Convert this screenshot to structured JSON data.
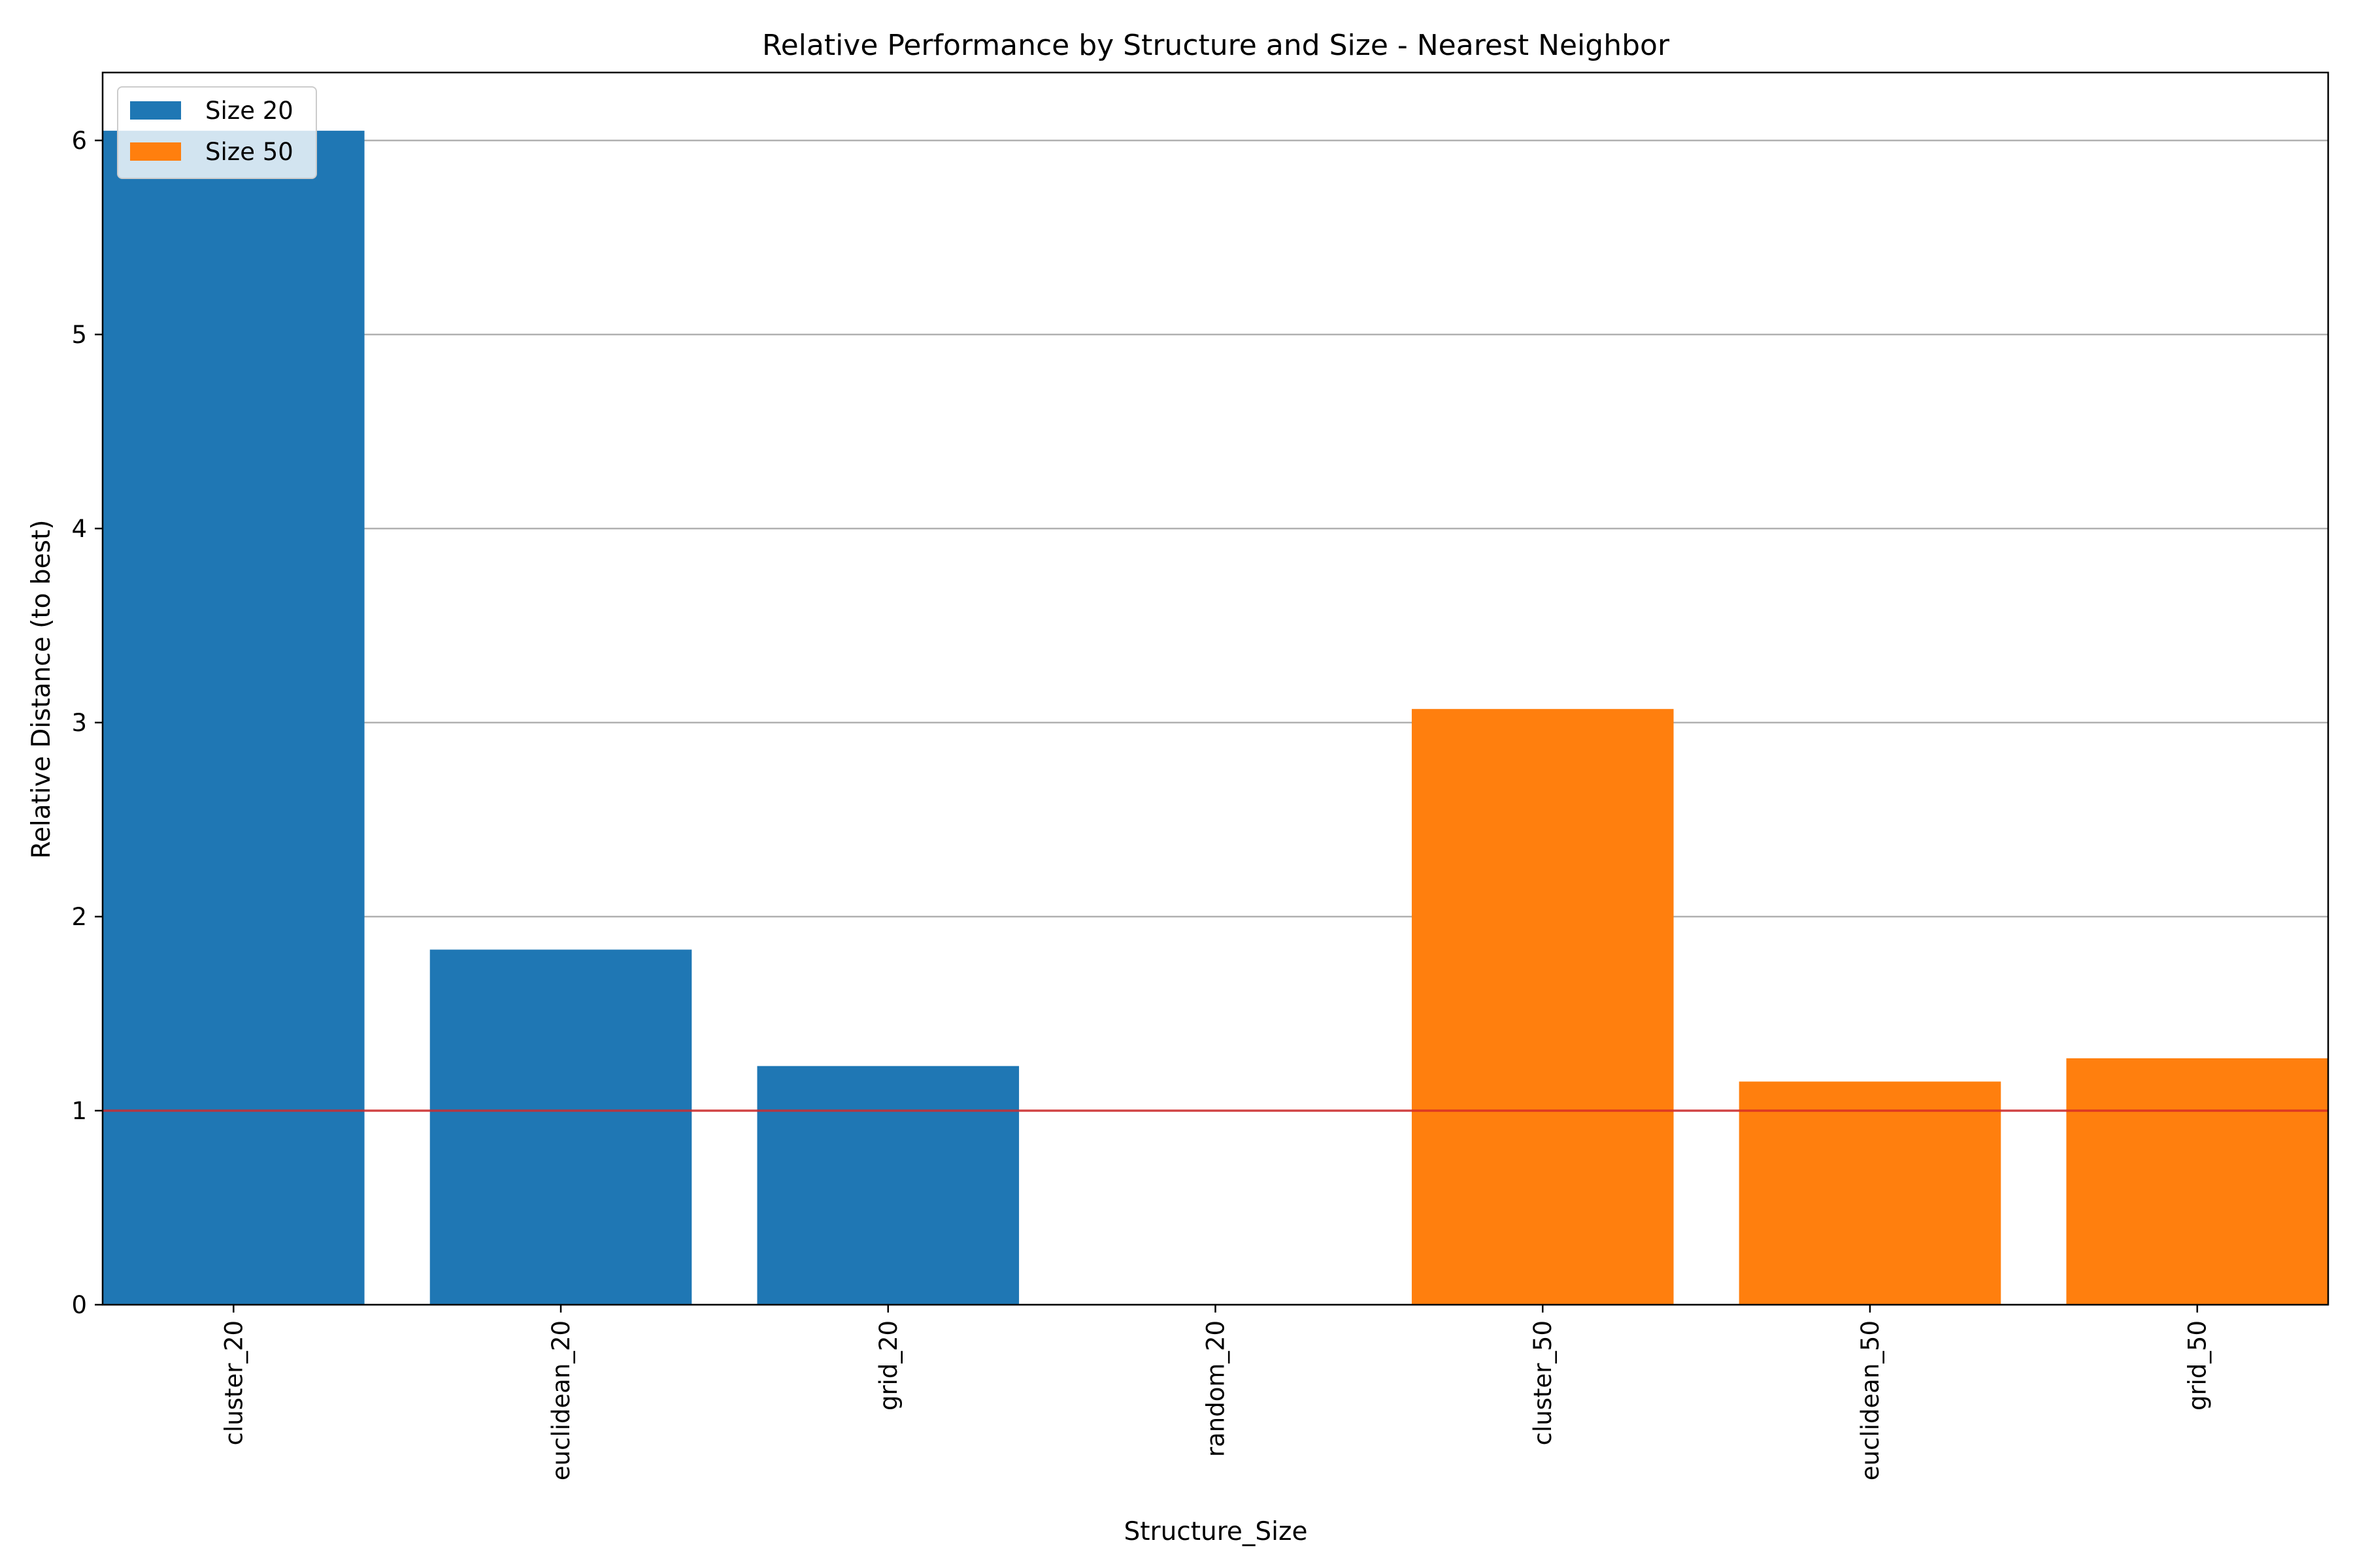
{
  "chart_data": {
    "type": "bar",
    "title": "Relative Performance by Structure and Size - Nearest Neighbor",
    "xlabel": "Structure_Size",
    "ylabel": "Relative Distance (to best)",
    "categories": [
      "cluster_20",
      "euclidean_20",
      "grid_20",
      "random_20",
      "cluster_50",
      "euclidean_50",
      "grid_50"
    ],
    "series": [
      {
        "name": "Size 20",
        "color": "#1f77b4",
        "values": [
          6.05,
          1.83,
          1.23,
          0,
          null,
          null,
          null
        ]
      },
      {
        "name": "Size 50",
        "color": "#ff7f0e",
        "values": [
          null,
          null,
          null,
          null,
          3.07,
          1.15,
          1.27
        ]
      }
    ],
    "ylim": [
      0,
      6.35
    ],
    "yticks": [
      0,
      1,
      2,
      3,
      4,
      5,
      6
    ],
    "reference_line": {
      "value": 1,
      "color": "#d62728"
    },
    "grid": "y",
    "legend": "top-left"
  }
}
